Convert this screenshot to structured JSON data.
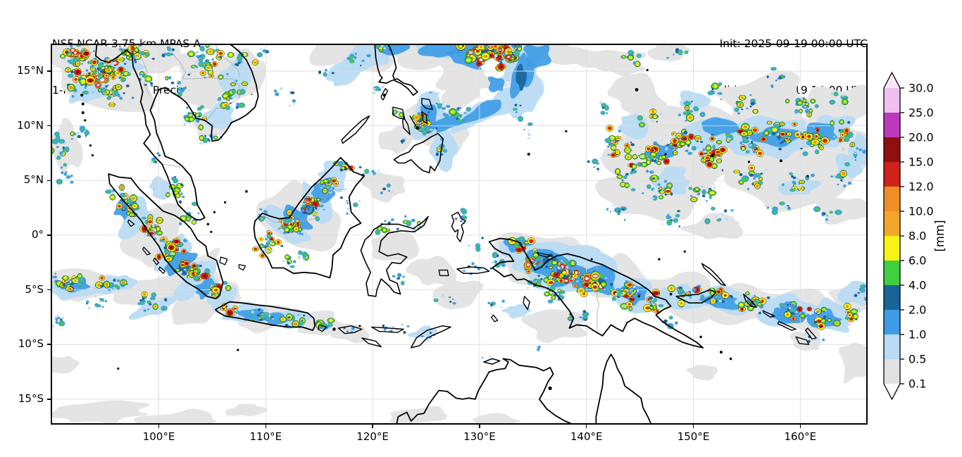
{
  "header": {
    "title_line1": "NSF NCAR 3.75-km MPAS-A",
    "title_line2": "1-hr Accumulated Precipitation (mm)",
    "init_label": "Init: 2025-09-19 00:00 UTC",
    "valid_label": "Valid: 2025-09-19 14:00 UTC"
  },
  "axes": {
    "x_ticks": [
      {
        "label": "100°E",
        "lon": 100
      },
      {
        "label": "110°E",
        "lon": 110
      },
      {
        "label": "120°E",
        "lon": 120
      },
      {
        "label": "130°E",
        "lon": 130
      },
      {
        "label": "140°E",
        "lon": 140
      },
      {
        "label": "150°E",
        "lon": 150
      },
      {
        "label": "160°E",
        "lon": 160
      }
    ],
    "y_ticks": [
      {
        "label": "15°N",
        "lat": 15
      },
      {
        "label": "10°N",
        "lat": 10
      },
      {
        "label": "5°N",
        "lat": 5
      },
      {
        "label": "0°",
        "lat": 0
      },
      {
        "label": "5°S",
        "lat": -5
      },
      {
        "label": "10°S",
        "lat": -10
      },
      {
        "label": "15°S",
        "lat": -15
      }
    ]
  },
  "colorbar": {
    "unit_label": "[mm]",
    "tick_labels_top_to_bottom": [
      "30.0",
      "25.0",
      "20.0",
      "15.0",
      "12.0",
      "10.0",
      "8.0",
      "6.0",
      "4.0",
      "2.0",
      "1.0",
      "0.5",
      "0.1"
    ],
    "segment_colors_top_to_bottom": [
      "#efbfef",
      "#bc38bc",
      "#8f1010",
      "#d0211b",
      "#ee8e26",
      "#f3a62c",
      "#f8f215",
      "#3fd03f",
      "#1a6399",
      "#3e9ce6",
      "#b9dbf4",
      "#e1e1e1"
    ],
    "over_arrow_color": "#f9e7f9",
    "under_arrow_color": "#ffffff"
  },
  "map_style": {
    "ocean_color": "#ffffff",
    "coastline_color": "#000000",
    "border_color": "#a9a9a9",
    "gridline_color": "#dcdcdc",
    "frame_color": "#000000"
  }
}
